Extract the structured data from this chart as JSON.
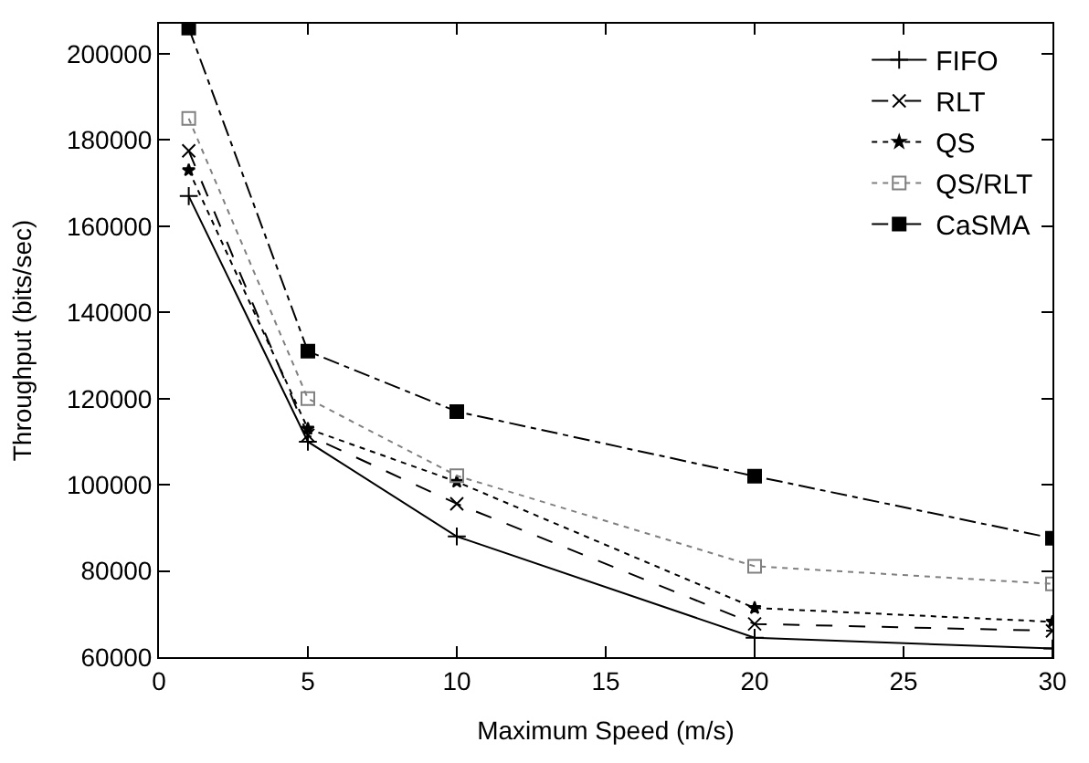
{
  "chart_data": {
    "type": "line",
    "xlabel": "Maximum Speed (m/s)",
    "ylabel": "Throughput (bits/sec)",
    "x": [
      1,
      5,
      10,
      20,
      30
    ],
    "series": [
      {
        "name": "FIFO",
        "color": "#000000",
        "line_style": "solid",
        "marker": "cross",
        "values": [
          167000,
          110000,
          88000,
          64500,
          62000
        ]
      },
      {
        "name": "RLT",
        "color": "#000000",
        "line_style": "dashed",
        "marker": "x",
        "values": [
          177500,
          111500,
          95600,
          67700,
          66100
        ]
      },
      {
        "name": "QS",
        "color": "#000000",
        "line_style": "dotted",
        "marker": "star",
        "values": [
          173000,
          113000,
          100700,
          71400,
          68200
        ]
      },
      {
        "name": "QS/RLT",
        "color": "#808080",
        "line_style": "dotted",
        "marker": "square-open",
        "values": [
          185000,
          120000,
          102100,
          81100,
          77000
        ]
      },
      {
        "name": "CaSMA",
        "color": "#000000",
        "line_style": "dashdot",
        "marker": "square",
        "values": [
          206000,
          131000,
          117000,
          102000,
          87600
        ]
      }
    ],
    "xlim": [
      0,
      30
    ],
    "xticks": [
      0,
      5,
      10,
      15,
      20,
      25,
      30
    ],
    "ylim": [
      60000,
      207000
    ],
    "yticks": [
      60000,
      80000,
      100000,
      120000,
      140000,
      160000,
      180000,
      200000
    ],
    "grid": false,
    "legend": "top right"
  }
}
